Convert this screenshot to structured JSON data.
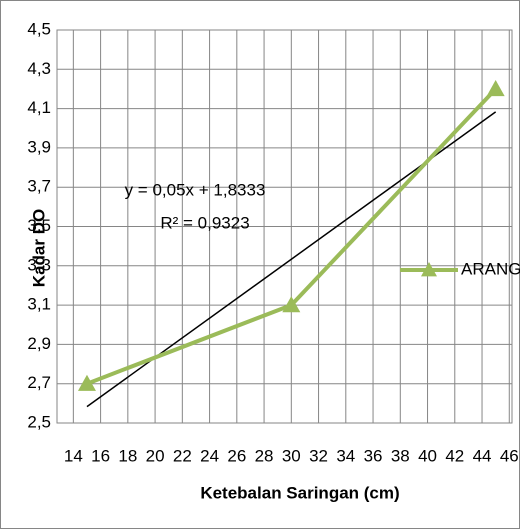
{
  "chart_data": {
    "type": "line",
    "xlabel": "Ketebalan Saringan (cm)",
    "ylabel": "Kadar DO",
    "x": [
      15,
      30,
      45
    ],
    "series": [
      {
        "name": "ARANG",
        "color": "#9bbb59",
        "values": [
          2.7,
          3.1,
          4.2
        ]
      }
    ],
    "xlim": [
      12.8,
      46.2
    ],
    "xticks": [
      14,
      16,
      18,
      20,
      22,
      24,
      26,
      28,
      30,
      32,
      34,
      36,
      38,
      40,
      42,
      44,
      46
    ],
    "ylim": [
      2.5,
      4.5
    ],
    "yticks": [
      {
        "value": 2.5,
        "label": "2,5"
      },
      {
        "value": 2.7,
        "label": "2,7"
      },
      {
        "value": 2.9,
        "label": "2,9"
      },
      {
        "value": 3.1,
        "label": "3,1"
      },
      {
        "value": 3.3,
        "label": "3,3"
      },
      {
        "value": 3.5,
        "label": "3,5"
      },
      {
        "value": 3.7,
        "label": "3,7"
      },
      {
        "value": 3.9,
        "label": "3,9"
      },
      {
        "value": 4.1,
        "label": "4,1"
      },
      {
        "value": 4.3,
        "label": "4,3"
      },
      {
        "value": 4.5,
        "label": "4,5"
      }
    ],
    "grid": true,
    "legend": "right",
    "trendline": {
      "equation": "y = 0,05x + 1,8333",
      "r2": "R² = 0,9323",
      "slope": 0.05,
      "intercept": 1.8333,
      "color": "#000000"
    }
  }
}
